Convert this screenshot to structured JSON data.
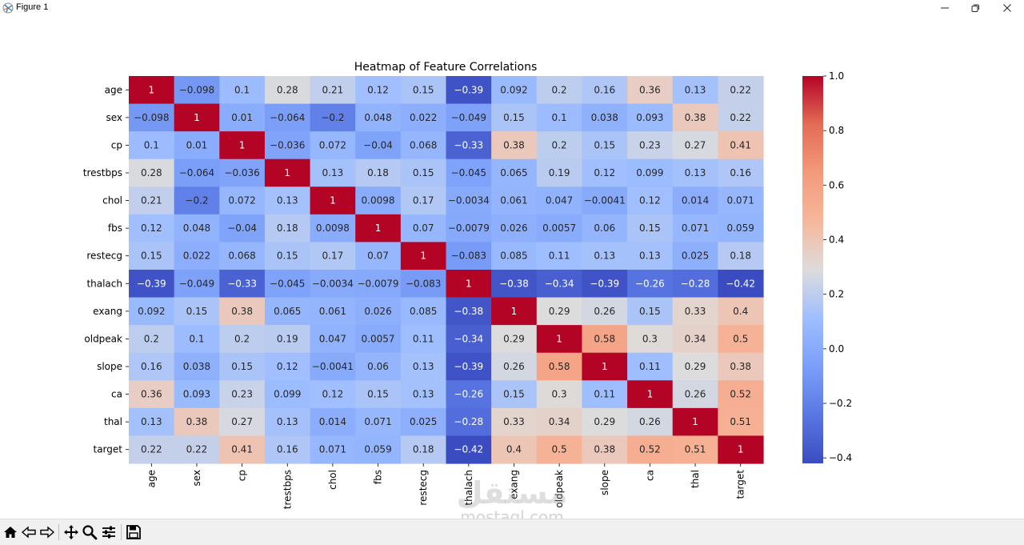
{
  "window": {
    "title": "Figure 1",
    "icons": {
      "app": "matplotlib-icon",
      "minimize": "minimize-icon",
      "maximize": "restore-icon",
      "close": "close-icon"
    }
  },
  "toolbar": {
    "buttons": [
      "home-icon",
      "back-icon",
      "forward-icon",
      "pan-icon",
      "zoom-icon",
      "configure-subplots-icon",
      "save-icon"
    ]
  },
  "watermark": {
    "logo": "مستقل",
    "text": "mostaql.com"
  },
  "chart_data": {
    "type": "heatmap",
    "title": "Heatmap of Feature Correlations",
    "labels": [
      "age",
      "sex",
      "cp",
      "trestbps",
      "chol",
      "fbs",
      "restecg",
      "thalach",
      "exang",
      "oldpeak",
      "slope",
      "ca",
      "thal",
      "target"
    ],
    "matrix": [
      [
        1,
        -0.098,
        0.1,
        0.28,
        0.21,
        0.12,
        0.15,
        -0.39,
        0.092,
        0.2,
        0.16,
        0.36,
        0.13,
        0.22
      ],
      [
        -0.098,
        1,
        0.01,
        -0.064,
        -0.2,
        0.048,
        0.022,
        -0.049,
        0.15,
        0.1,
        0.038,
        0.093,
        0.38,
        0.22
      ],
      [
        0.1,
        0.01,
        1,
        -0.036,
        0.072,
        -0.04,
        0.068,
        -0.33,
        0.38,
        0.2,
        0.15,
        0.23,
        0.27,
        0.41
      ],
      [
        0.28,
        -0.064,
        -0.036,
        1,
        0.13,
        0.18,
        0.15,
        -0.045,
        0.065,
        0.19,
        0.12,
        0.099,
        0.13,
        0.16
      ],
      [
        0.21,
        -0.2,
        0.072,
        0.13,
        1,
        0.0098,
        0.17,
        -0.0034,
        0.061,
        0.047,
        -0.0041,
        0.12,
        0.014,
        0.071
      ],
      [
        0.12,
        0.048,
        -0.04,
        0.18,
        0.0098,
        1,
        0.07,
        -0.0079,
        0.026,
        0.0057,
        0.06,
        0.15,
        0.071,
        0.059
      ],
      [
        0.15,
        0.022,
        0.068,
        0.15,
        0.17,
        0.07,
        1,
        -0.083,
        0.085,
        0.11,
        0.13,
        0.13,
        0.025,
        0.18
      ],
      [
        -0.39,
        -0.049,
        -0.33,
        -0.045,
        -0.0034,
        -0.0079,
        -0.083,
        1,
        -0.38,
        -0.34,
        -0.39,
        -0.26,
        -0.28,
        -0.42
      ],
      [
        0.092,
        0.15,
        0.38,
        0.065,
        0.061,
        0.026,
        0.085,
        -0.38,
        1,
        0.29,
        0.26,
        0.15,
        0.33,
        0.4
      ],
      [
        0.2,
        0.1,
        0.2,
        0.19,
        0.047,
        0.0057,
        0.11,
        -0.34,
        0.29,
        1,
        0.58,
        0.3,
        0.34,
        0.5
      ],
      [
        0.16,
        0.038,
        0.15,
        0.12,
        -0.0041,
        0.06,
        0.13,
        -0.39,
        0.26,
        0.58,
        1,
        0.11,
        0.29,
        0.38
      ],
      [
        0.36,
        0.093,
        0.23,
        0.099,
        0.12,
        0.15,
        0.13,
        -0.26,
        0.15,
        0.3,
        0.11,
        1,
        0.26,
        0.52
      ],
      [
        0.13,
        0.38,
        0.27,
        0.13,
        0.014,
        0.071,
        0.025,
        -0.28,
        0.33,
        0.34,
        0.29,
        0.26,
        1,
        0.51
      ],
      [
        0.22,
        0.22,
        0.41,
        0.16,
        0.071,
        0.059,
        0.18,
        -0.42,
        0.4,
        0.5,
        0.38,
        0.52,
        0.51,
        1
      ]
    ],
    "colormap": "coolwarm",
    "vmin": -0.42,
    "vmax": 1.0,
    "colorbar_ticks": [
      1.0,
      0.8,
      0.6,
      0.4,
      0.2,
      0.0,
      -0.2,
      -0.4
    ],
    "colorbar_tick_labels": [
      "1.0",
      "0.8",
      "0.6",
      "0.4",
      "0.2",
      "0.0",
      "−0.2",
      "−0.4"
    ],
    "colormap_stops": [
      [
        0.0,
        "#3b4cc0"
      ],
      [
        0.125,
        "#5977e3"
      ],
      [
        0.25,
        "#7b9ff9"
      ],
      [
        0.375,
        "#9ebeff"
      ],
      [
        0.5,
        "#dddcdc"
      ],
      [
        0.625,
        "#f6b79c"
      ],
      [
        0.75,
        "#f49a7b"
      ],
      [
        0.875,
        "#e36c55"
      ],
      [
        1.0,
        "#b40426"
      ]
    ]
  }
}
